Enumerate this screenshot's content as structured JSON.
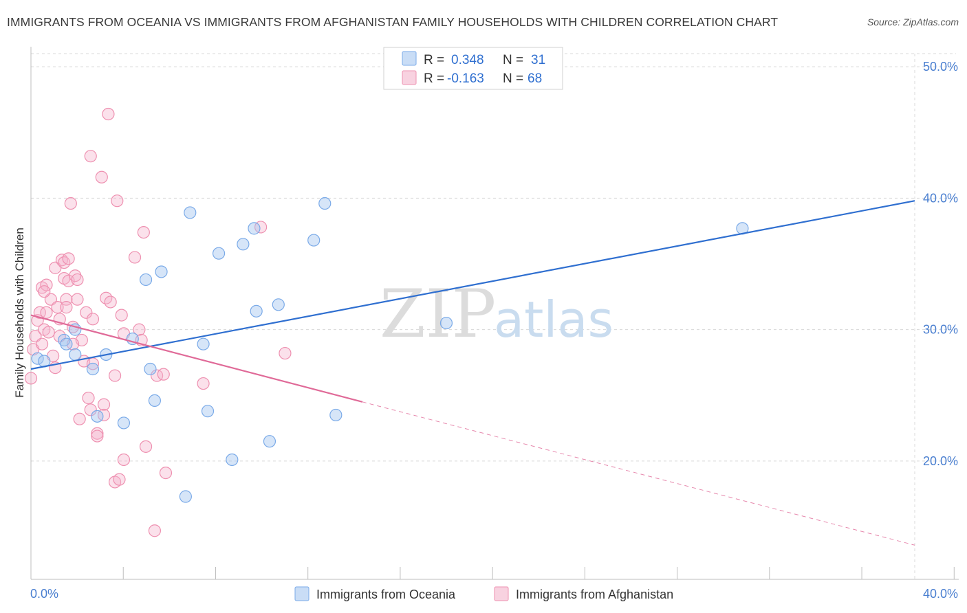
{
  "title": "IMMIGRANTS FROM OCEANIA VS IMMIGRANTS FROM AFGHANISTAN FAMILY HOUSEHOLDS WITH CHILDREN CORRELATION CHART",
  "source": "Source: ZipAtlas.com",
  "watermark": {
    "zip": "ZIP",
    "atlas": "atlas"
  },
  "colors": {
    "oceania": "#7aaae8",
    "oceania_fill": "rgba(165,198,240,0.45)",
    "oceania_line": "#2f6fd0",
    "afghanistan": "#ee90b0",
    "afghanistan_fill": "rgba(244,180,204,0.40)",
    "afghanistan_line": "#e06a98",
    "axis_text": "#4a7fd0",
    "grid": "#d8d8d8"
  },
  "legend": {
    "row1": {
      "r_label": "R =",
      "r_value": "0.348",
      "n_label": "N =",
      "n_value": "31"
    },
    "row2": {
      "r_label": "R =",
      "r_value": "-0.163",
      "n_label": "N =",
      "n_value": "68"
    }
  },
  "chart_data": {
    "type": "scatter",
    "title": "IMMIGRANTS FROM OCEANIA VS IMMIGRANTS FROM AFGHANISTAN FAMILY HOUSEHOLDS WITH CHILDREN CORRELATION CHART",
    "xlabel": "",
    "ylabel": "Family Households with Children",
    "xlim": [
      0,
      40
    ],
    "ylim": [
      11,
      51
    ],
    "x_tick_labels": [
      "0.0%",
      "40.0%"
    ],
    "y_ticks": [
      20,
      30,
      40,
      50
    ],
    "y_tick_labels": [
      "20.0%",
      "30.0%",
      "40.0%",
      "50.0%"
    ],
    "grid": true,
    "legend_position": "top-center",
    "series": [
      {
        "name": "Immigrants from Oceania",
        "r": 0.348,
        "n": 31,
        "trend": {
          "x0": 0.0,
          "y0": 27.0,
          "x1": 40.0,
          "y1": 39.8
        },
        "points": [
          [
            0.3,
            27.8
          ],
          [
            0.6,
            27.6
          ],
          [
            1.5,
            29.2
          ],
          [
            1.6,
            28.9
          ],
          [
            2.0,
            30.0
          ],
          [
            2.0,
            28.1
          ],
          [
            2.8,
            27.0
          ],
          [
            3.0,
            23.4
          ],
          [
            3.4,
            28.1
          ],
          [
            4.2,
            22.9
          ],
          [
            4.6,
            29.3
          ],
          [
            5.2,
            33.8
          ],
          [
            5.4,
            27.0
          ],
          [
            5.6,
            24.6
          ],
          [
            5.9,
            34.4
          ],
          [
            7.0,
            17.3
          ],
          [
            7.2,
            38.9
          ],
          [
            7.8,
            28.9
          ],
          [
            8.0,
            23.8
          ],
          [
            8.5,
            35.8
          ],
          [
            9.1,
            20.1
          ],
          [
            9.6,
            36.5
          ],
          [
            10.1,
            37.7
          ],
          [
            10.2,
            31.4
          ],
          [
            10.8,
            21.5
          ],
          [
            11.2,
            31.9
          ],
          [
            12.8,
            36.8
          ],
          [
            13.3,
            39.6
          ],
          [
            13.8,
            23.5
          ],
          [
            18.8,
            30.5
          ],
          [
            32.2,
            37.7
          ]
        ]
      },
      {
        "name": "Immigrants from Afghanistan",
        "r": -0.163,
        "n": 68,
        "trend": {
          "x0": 0.0,
          "y0": 31.1,
          "x1": 15.0,
          "y1": 24.5,
          "x_dash_end": 40.0,
          "y_dash_end": 13.6
        },
        "points": [
          [
            0.0,
            26.3
          ],
          [
            0.1,
            28.5
          ],
          [
            0.2,
            29.5
          ],
          [
            0.3,
            30.7
          ],
          [
            0.4,
            31.3
          ],
          [
            0.5,
            28.9
          ],
          [
            0.5,
            33.2
          ],
          [
            0.6,
            30.0
          ],
          [
            0.7,
            31.3
          ],
          [
            0.7,
            33.4
          ],
          [
            0.8,
            29.8
          ],
          [
            0.9,
            32.3
          ],
          [
            1.0,
            28.0
          ],
          [
            1.1,
            34.7
          ],
          [
            1.1,
            27.1
          ],
          [
            1.2,
            31.7
          ],
          [
            1.3,
            29.5
          ],
          [
            1.3,
            30.8
          ],
          [
            1.4,
            35.3
          ],
          [
            1.5,
            35.1
          ],
          [
            1.5,
            33.9
          ],
          [
            1.6,
            32.3
          ],
          [
            1.6,
            31.7
          ],
          [
            1.7,
            35.4
          ],
          [
            1.7,
            33.7
          ],
          [
            1.8,
            39.6
          ],
          [
            1.9,
            30.2
          ],
          [
            2.0,
            34.1
          ],
          [
            2.1,
            33.8
          ],
          [
            2.1,
            32.3
          ],
          [
            2.2,
            23.2
          ],
          [
            2.3,
            29.2
          ],
          [
            2.4,
            27.6
          ],
          [
            2.5,
            31.3
          ],
          [
            2.6,
            24.8
          ],
          [
            2.7,
            43.2
          ],
          [
            2.7,
            23.9
          ],
          [
            2.8,
            27.4
          ],
          [
            2.8,
            30.8
          ],
          [
            3.0,
            22.1
          ],
          [
            3.0,
            21.9
          ],
          [
            3.2,
            41.6
          ],
          [
            3.3,
            24.3
          ],
          [
            3.3,
            23.5
          ],
          [
            3.4,
            32.4
          ],
          [
            3.5,
            46.4
          ],
          [
            3.6,
            32.1
          ],
          [
            3.8,
            18.4
          ],
          [
            3.8,
            26.5
          ],
          [
            3.9,
            39.8
          ],
          [
            4.0,
            18.6
          ],
          [
            4.1,
            31.1
          ],
          [
            4.2,
            29.7
          ],
          [
            4.2,
            20.1
          ],
          [
            4.7,
            35.5
          ],
          [
            4.9,
            30.0
          ],
          [
            5.0,
            29.2
          ],
          [
            5.1,
            37.4
          ],
          [
            5.2,
            21.1
          ],
          [
            5.6,
            14.7
          ],
          [
            5.7,
            26.5
          ],
          [
            6.0,
            26.6
          ],
          [
            6.1,
            19.1
          ],
          [
            7.8,
            25.9
          ],
          [
            10.4,
            37.8
          ],
          [
            11.5,
            28.2
          ],
          [
            0.6,
            32.9
          ],
          [
            1.9,
            28.9
          ]
        ]
      }
    ]
  },
  "bottom_legend": {
    "item1": "Immigrants from Oceania",
    "item2": "Immigrants from Afghanistan"
  }
}
